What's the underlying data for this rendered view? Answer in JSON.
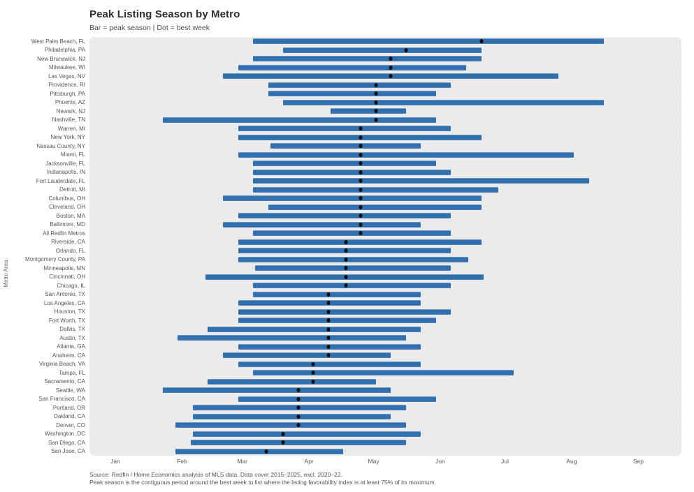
{
  "title": "Peak Listing Season by Metro",
  "subtitle": "Bar = peak season | Dot = best week",
  "y_axis_title": "Metro Area",
  "footer": {
    "line1": "Source: Redfin / Home Economics analysis of MLS data. Data cover 2015–2025, excl. 2020–22.",
    "line2": "Peak season is the contiguous period around the best week to list where the listing favorability index is at least 75% of its maximum."
  },
  "colors": {
    "bar": "#326fae",
    "dot": "#0b0b0b",
    "panel_bg": "#ebebeb",
    "gridline": "#d2d2d2",
    "text_muted": "#555555"
  },
  "chart_data": {
    "type": "bar",
    "subtype": "horizontal-range-with-dot",
    "x_unit": "day_of_year",
    "x_domain": [
      -11,
      264
    ],
    "grid": "horizontal-dotted",
    "legend_position": "none",
    "x_ticks": [
      {
        "label": "Jan",
        "doy": 1
      },
      {
        "label": "Feb",
        "doy": 32
      },
      {
        "label": "Mar",
        "doy": 60
      },
      {
        "label": "Apr",
        "doy": 91
      },
      {
        "label": "May",
        "doy": 121
      },
      {
        "label": "Jun",
        "doy": 152
      },
      {
        "label": "Jul",
        "doy": 182
      },
      {
        "label": "Aug",
        "doy": 213
      },
      {
        "label": "Sep",
        "doy": 244
      }
    ],
    "rows": [
      {
        "metro": "West Palm Beach, FL",
        "start": 65,
        "end": 228,
        "best": 171
      },
      {
        "metro": "Philadelphia, PA",
        "start": 79,
        "end": 171,
        "best": 136
      },
      {
        "metro": "New Brunswick, NJ",
        "start": 65,
        "end": 171,
        "best": 129
      },
      {
        "metro": "Milwaukee, WI",
        "start": 58,
        "end": 164,
        "best": 129
      },
      {
        "metro": "Las Vegas, NV",
        "start": 51,
        "end": 207,
        "best": 129
      },
      {
        "metro": "Providence, RI",
        "start": 72,
        "end": 157,
        "best": 122
      },
      {
        "metro": "Pittsburgh, PA",
        "start": 72,
        "end": 150,
        "best": 122
      },
      {
        "metro": "Phoenix, AZ",
        "start": 79,
        "end": 228,
        "best": 122
      },
      {
        "metro": "Newark, NJ",
        "start": 101,
        "end": 136,
        "best": 122
      },
      {
        "metro": "Nashville, TN",
        "start": 23,
        "end": 150,
        "best": 122
      },
      {
        "metro": "Warren, MI",
        "start": 58,
        "end": 157,
        "best": 115
      },
      {
        "metro": "New York, NY",
        "start": 58,
        "end": 171,
        "best": 115
      },
      {
        "metro": "Nassau County, NY",
        "start": 73,
        "end": 143,
        "best": 115
      },
      {
        "metro": "Miami, FL",
        "start": 58,
        "end": 214,
        "best": 115
      },
      {
        "metro": "Jacksonville, FL",
        "start": 65,
        "end": 150,
        "best": 115
      },
      {
        "metro": "Indianapolis, IN",
        "start": 65,
        "end": 157,
        "best": 115
      },
      {
        "metro": "Fort Lauderdale, FL",
        "start": 65,
        "end": 221,
        "best": 115
      },
      {
        "metro": "Detroit, MI",
        "start": 65,
        "end": 179,
        "best": 115
      },
      {
        "metro": "Columbus, OH",
        "start": 51,
        "end": 171,
        "best": 115
      },
      {
        "metro": "Cleveland, OH",
        "start": 72,
        "end": 171,
        "best": 115
      },
      {
        "metro": "Boston, MA",
        "start": 58,
        "end": 157,
        "best": 115
      },
      {
        "metro": "Baltimore, MD",
        "start": 51,
        "end": 143,
        "best": 115
      },
      {
        "metro": "All Redfin Metros",
        "start": 65,
        "end": 157,
        "best": 115
      },
      {
        "metro": "Riverside, CA",
        "start": 58,
        "end": 171,
        "best": 108
      },
      {
        "metro": "Orlando, FL",
        "start": 58,
        "end": 157,
        "best": 108
      },
      {
        "metro": "Montgomery County, PA",
        "start": 58,
        "end": 165,
        "best": 108
      },
      {
        "metro": "Minneapolis, MN",
        "start": 66,
        "end": 157,
        "best": 108
      },
      {
        "metro": "Cincinnati, OH",
        "start": 43,
        "end": 172,
        "best": 108
      },
      {
        "metro": "Chicago, IL",
        "start": 65,
        "end": 157,
        "best": 108
      },
      {
        "metro": "San Antonio, TX",
        "start": 65,
        "end": 143,
        "best": 100
      },
      {
        "metro": "Los Angeles, CA",
        "start": 58,
        "end": 143,
        "best": 100
      },
      {
        "metro": "Houston, TX",
        "start": 58,
        "end": 157,
        "best": 100
      },
      {
        "metro": "Fort Worth, TX",
        "start": 58,
        "end": 150,
        "best": 100
      },
      {
        "metro": "Dallas, TX",
        "start": 44,
        "end": 143,
        "best": 100
      },
      {
        "metro": "Austin, TX",
        "start": 30,
        "end": 136,
        "best": 100
      },
      {
        "metro": "Atlanta, GA",
        "start": 58,
        "end": 143,
        "best": 100
      },
      {
        "metro": "Anaheim, CA",
        "start": 51,
        "end": 129,
        "best": 100
      },
      {
        "metro": "Virginia Beach, VA",
        "start": 58,
        "end": 143,
        "best": 93
      },
      {
        "metro": "Tampa, FL",
        "start": 65,
        "end": 186,
        "best": 93
      },
      {
        "metro": "Sacramento, CA",
        "start": 44,
        "end": 122,
        "best": 93
      },
      {
        "metro": "Seattle, WA",
        "start": 23,
        "end": 129,
        "best": 86
      },
      {
        "metro": "San Francisco, CA",
        "start": 58,
        "end": 150,
        "best": 86
      },
      {
        "metro": "Portland, OR",
        "start": 37,
        "end": 136,
        "best": 86
      },
      {
        "metro": "Oakland, CA",
        "start": 37,
        "end": 129,
        "best": 86
      },
      {
        "metro": "Denver, CO",
        "start": 29,
        "end": 136,
        "best": 86
      },
      {
        "metro": "Washington, DC",
        "start": 37,
        "end": 143,
        "best": 79
      },
      {
        "metro": "San Diego, CA",
        "start": 36,
        "end": 136,
        "best": 79
      },
      {
        "metro": "San Jose, CA",
        "start": 29,
        "end": 107,
        "best": 71
      }
    ]
  }
}
